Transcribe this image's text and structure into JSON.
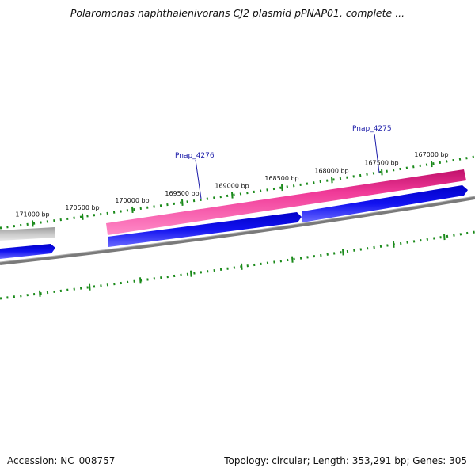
{
  "title": "Polaromonas naphthalenivorans CJ2 plasmid pPNAP01, complete ...",
  "accession_label": "Accession:",
  "accession": "NC_008757",
  "topology_label": "Topology:",
  "topology": "circular",
  "length_label": "Length:",
  "length": "353,291 bp",
  "genes_label": "Genes:",
  "genes": "305",
  "colors": {
    "forward_gene": "#ee2b8d",
    "reverse_gene": "#1010e6",
    "backbone": "#808080",
    "ticks": "#1a8a1a",
    "gene_label": "#1a1aa8"
  },
  "ruler": {
    "ticks": [
      {
        "bp": 171000,
        "label": "171000 bp"
      },
      {
        "bp": 170500,
        "label": "170500 bp"
      },
      {
        "bp": 170000,
        "label": "170000 bp"
      },
      {
        "bp": 169500,
        "label": "169500 bp"
      },
      {
        "bp": 169000,
        "label": "169000 bp"
      },
      {
        "bp": 168500,
        "label": "168500 bp"
      },
      {
        "bp": 168000,
        "label": "168000 bp"
      },
      {
        "bp": 167500,
        "label": "167500 bp"
      },
      {
        "bp": 167000,
        "label": "167000 bp"
      }
    ]
  },
  "genes_shown": [
    {
      "name": "Pnap_4276",
      "strand": "forward"
    },
    {
      "name": "Pnap_4275",
      "strand": "forward"
    }
  ]
}
